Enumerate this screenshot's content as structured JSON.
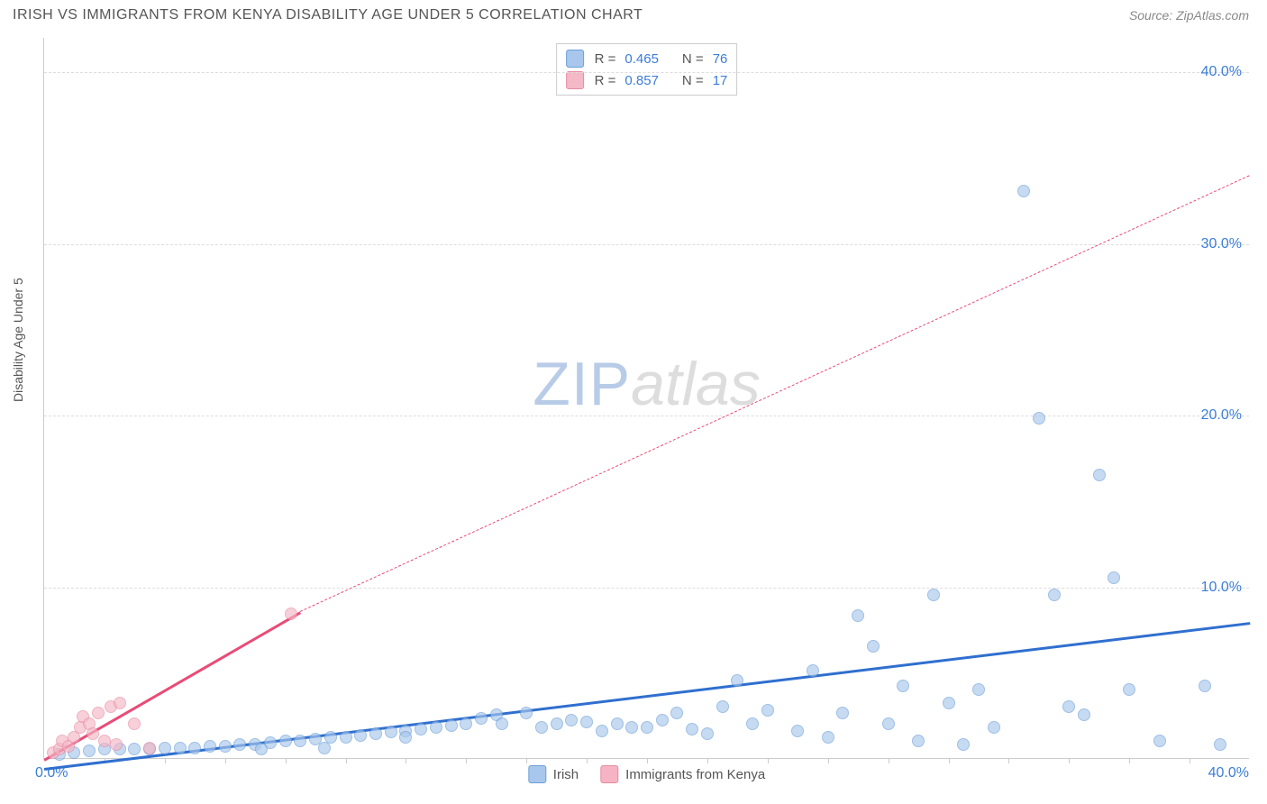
{
  "header": {
    "title": "IRISH VS IMMIGRANTS FROM KENYA DISABILITY AGE UNDER 5 CORRELATION CHART",
    "source": "Source: ZipAtlas.com"
  },
  "chart": {
    "type": "scatter",
    "y_axis_label": "Disability Age Under 5",
    "xlim": [
      0,
      40
    ],
    "ylim": [
      0,
      42
    ],
    "x_ticks": [
      0,
      40
    ],
    "x_tick_labels": [
      "0.0%",
      "40.0%"
    ],
    "x_minor_ticks": [
      2,
      4,
      6,
      8,
      10,
      12,
      14,
      16,
      18,
      20,
      22,
      24,
      26,
      28,
      30,
      32,
      34,
      36,
      38
    ],
    "y_ticks": [
      10,
      20,
      30,
      40
    ],
    "y_tick_labels": [
      "10.0%",
      "20.0%",
      "30.0%",
      "40.0%"
    ],
    "tick_label_color": "#3b7dd8",
    "tick_label_fontsize": 16,
    "axis_label_color": "#555555",
    "grid_color": "#dddddd",
    "background_color": "#ffffff",
    "axis_line_color": "#cccccc",
    "watermark": {
      "zip": "ZIP",
      "atlas": "atlas"
    },
    "series": [
      {
        "name": "Irish",
        "marker_fill": "#a9c7ec",
        "marker_stroke": "#6b9fd8",
        "marker_opacity": 0.65,
        "marker_size": 14,
        "trend_color": "#2f6fcf",
        "trend_width": 2.5,
        "trend": {
          "x1": 0,
          "y1": -0.5,
          "x2": 40,
          "y2": 8.0
        },
        "r": "0.465",
        "n": "76",
        "points": [
          [
            0.5,
            0.2
          ],
          [
            1.0,
            0.3
          ],
          [
            1.5,
            0.4
          ],
          [
            2.0,
            0.5
          ],
          [
            2.5,
            0.5
          ],
          [
            3.0,
            0.5
          ],
          [
            3.5,
            0.5
          ],
          [
            4.0,
            0.6
          ],
          [
            4.5,
            0.6
          ],
          [
            5.0,
            0.6
          ],
          [
            5.5,
            0.7
          ],
          [
            6.0,
            0.7
          ],
          [
            6.5,
            0.8
          ],
          [
            7.0,
            0.8
          ],
          [
            7.2,
            0.5
          ],
          [
            7.5,
            0.9
          ],
          [
            8.0,
            1.0
          ],
          [
            8.5,
            1.0
          ],
          [
            9.0,
            1.1
          ],
          [
            9.3,
            0.6
          ],
          [
            9.5,
            1.2
          ],
          [
            10.0,
            1.2
          ],
          [
            10.5,
            1.3
          ],
          [
            11.0,
            1.4
          ],
          [
            11.5,
            1.5
          ],
          [
            12.0,
            1.6
          ],
          [
            12.0,
            1.2
          ],
          [
            12.5,
            1.7
          ],
          [
            13.0,
            1.8
          ],
          [
            13.5,
            1.9
          ],
          [
            14.0,
            2.0
          ],
          [
            14.5,
            2.3
          ],
          [
            15.0,
            2.5
          ],
          [
            15.2,
            2.0
          ],
          [
            16.0,
            2.6
          ],
          [
            16.5,
            1.8
          ],
          [
            17.0,
            2.0
          ],
          [
            17.5,
            2.2
          ],
          [
            18.0,
            2.1
          ],
          [
            18.5,
            1.6
          ],
          [
            19.0,
            2.0
          ],
          [
            19.5,
            1.8
          ],
          [
            20.0,
            1.8
          ],
          [
            20.5,
            2.2
          ],
          [
            21.0,
            2.6
          ],
          [
            21.5,
            1.7
          ],
          [
            22.0,
            1.4
          ],
          [
            22.5,
            3.0
          ],
          [
            23.0,
            4.5
          ],
          [
            23.5,
            2.0
          ],
          [
            24.0,
            2.8
          ],
          [
            25.0,
            1.6
          ],
          [
            25.5,
            5.1
          ],
          [
            26.0,
            1.2
          ],
          [
            26.5,
            2.6
          ],
          [
            27.0,
            8.3
          ],
          [
            27.5,
            6.5
          ],
          [
            28.0,
            2.0
          ],
          [
            28.5,
            4.2
          ],
          [
            29.0,
            1.0
          ],
          [
            29.5,
            9.5
          ],
          [
            30.0,
            3.2
          ],
          [
            30.5,
            0.8
          ],
          [
            31.0,
            4.0
          ],
          [
            31.5,
            1.8
          ],
          [
            32.5,
            33.0
          ],
          [
            33.0,
            19.8
          ],
          [
            33.5,
            9.5
          ],
          [
            34.0,
            3.0
          ],
          [
            34.5,
            2.5
          ],
          [
            35.0,
            16.5
          ],
          [
            35.5,
            10.5
          ],
          [
            36.0,
            4.0
          ],
          [
            37.0,
            1.0
          ],
          [
            38.5,
            4.2
          ],
          [
            39.0,
            0.8
          ]
        ]
      },
      {
        "name": "Immigrants from Kenya",
        "marker_fill": "#f4b8c6",
        "marker_stroke": "#e88aa2",
        "marker_opacity": 0.65,
        "marker_size": 14,
        "trend_color": "#e94b77",
        "trend_width": 2.5,
        "trend_solid": {
          "x1": 0,
          "y1": 0,
          "x2": 8.5,
          "y2": 8.6
        },
        "trend_dashed": {
          "x1": 8.5,
          "y1": 8.6,
          "x2": 40,
          "y2": 34.0
        },
        "r": "0.857",
        "n": "17",
        "points": [
          [
            0.3,
            0.3
          ],
          [
            0.5,
            0.5
          ],
          [
            0.6,
            1.0
          ],
          [
            0.8,
            0.7
          ],
          [
            1.0,
            1.2
          ],
          [
            1.2,
            1.8
          ],
          [
            1.3,
            2.4
          ],
          [
            1.5,
            2.0
          ],
          [
            1.6,
            1.4
          ],
          [
            1.8,
            2.6
          ],
          [
            2.0,
            1.0
          ],
          [
            2.2,
            3.0
          ],
          [
            2.4,
            0.8
          ],
          [
            2.5,
            3.2
          ],
          [
            3.0,
            2.0
          ],
          [
            3.5,
            0.6
          ],
          [
            8.2,
            8.4
          ]
        ]
      }
    ],
    "legend_top": {
      "border_color": "#cccccc",
      "r_label": "R =",
      "n_label": "N =",
      "value_color": "#3b7dd8",
      "label_color": "#555555"
    },
    "legend_bottom": [
      {
        "swatch": "#a9c7ec",
        "stroke": "#6b9fd8",
        "label": "Irish"
      },
      {
        "swatch": "#f5b3c3",
        "stroke": "#e88aa2",
        "label": "Immigrants from Kenya"
      }
    ]
  }
}
